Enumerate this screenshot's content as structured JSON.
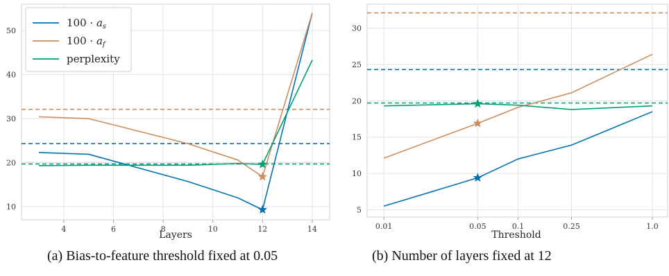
{
  "chart_data": [
    {
      "type": "line",
      "caption": "(a) Bias-to-feature threshold fixed at 0.05",
      "xlabel": "Layers",
      "ylabel": "",
      "xlim": [
        2.3,
        14.7
      ],
      "ylim": [
        7,
        56
      ],
      "x_ticks": [
        4,
        6,
        8,
        10,
        12,
        14
      ],
      "y_ticks": [
        10,
        20,
        30,
        40,
        50
      ],
      "grid": true,
      "legend_position": "top-left",
      "series": [
        {
          "name": "100 · a_s",
          "color": "#0072b2",
          "x": [
            3,
            5,
            9,
            11,
            12,
            14
          ],
          "y": [
            22.3,
            21.9,
            15.7,
            12.0,
            9.3,
            54.0
          ],
          "star_x": 12,
          "star_y": 9.3,
          "baseline": 24.3
        },
        {
          "name": "100 · a_f",
          "color": "#cc8e5c",
          "x": [
            3,
            5,
            9,
            11,
            12,
            14
          ],
          "y": [
            30.4,
            30.0,
            24.3,
            20.6,
            16.8,
            54.0
          ],
          "star_x": 12,
          "star_y": 16.8,
          "baseline": 32.1
        },
        {
          "name": "perplexity",
          "color": "#009e73",
          "x": [
            3,
            5,
            9,
            11,
            12,
            14
          ],
          "y": [
            19.3,
            19.4,
            19.4,
            19.8,
            19.6,
            43.3
          ],
          "star_x": 12,
          "star_y": 19.6,
          "baseline": 19.7
        }
      ]
    },
    {
      "type": "line",
      "caption": "(b) Number of layers fixed at 12",
      "xlabel": "Threshold",
      "ylabel": "",
      "x_scale": "log",
      "xlim": [
        0.0075,
        1.3
      ],
      "ylim": [
        4,
        33.3
      ],
      "x_ticks": [
        "0.01",
        "0.05",
        "0.1",
        "0.25",
        "1.0"
      ],
      "y_ticks": [
        5,
        10,
        15,
        20,
        25,
        30
      ],
      "grid": true,
      "series": [
        {
          "name": "100 · a_s",
          "color": "#0072b2",
          "x": [
            0.01,
            0.05,
            0.1,
            0.25,
            1.0
          ],
          "y": [
            5.5,
            9.4,
            12.0,
            13.9,
            18.5
          ],
          "star_x": 0.05,
          "star_y": 9.4,
          "baseline": 24.3
        },
        {
          "name": "100 · a_f",
          "color": "#cc8e5c",
          "x": [
            0.01,
            0.05,
            0.1,
            0.25,
            1.0
          ],
          "y": [
            12.1,
            16.9,
            19.1,
            21.1,
            26.4
          ],
          "star_x": 0.05,
          "star_y": 16.9,
          "baseline": 32.1
        },
        {
          "name": "perplexity",
          "color": "#009e73",
          "x": [
            0.01,
            0.05,
            0.1,
            0.25,
            1.0
          ],
          "y": [
            19.3,
            19.6,
            19.4,
            18.8,
            19.3
          ],
          "star_x": 0.05,
          "star_y": 19.6,
          "baseline": 19.7
        }
      ]
    }
  ]
}
